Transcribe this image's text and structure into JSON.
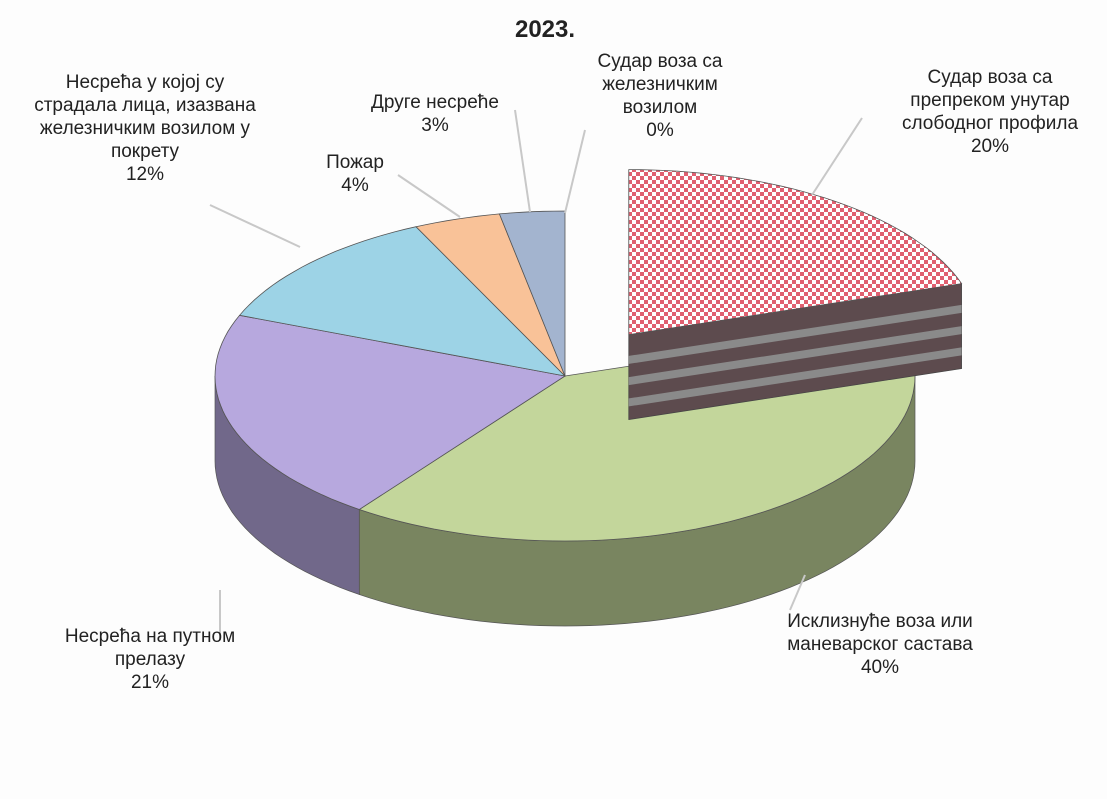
{
  "chart_data": {
    "type": "pie3d",
    "title": "2023.",
    "categories": [
      "Судар воза са железничким возилом",
      "Судар воза са препреком унутар слободног профила",
      "Исклизнуће воза или маневарског састава",
      "Несрећа на путном прелазу",
      "Несрећа у којој су страдала лица, изазвана железничким возилом у покрету",
      "Пожар",
      "Друге несреће"
    ],
    "values": [
      0,
      20,
      40,
      21,
      12,
      4,
      3
    ],
    "value_labels": [
      "0%",
      "20%",
      "40%",
      "21%",
      "12%",
      "4%",
      "3%"
    ],
    "colors": [
      "#d9d9d9",
      "#e06070",
      "#c3d69b",
      "#b7a8de",
      "#9dd3e6",
      "#f9c298",
      "#a3b4cf"
    ],
    "patterns": [
      null,
      "checker",
      null,
      null,
      null,
      null,
      null
    ],
    "explode": [
      false,
      true,
      false,
      false,
      false,
      false,
      false
    ]
  }
}
